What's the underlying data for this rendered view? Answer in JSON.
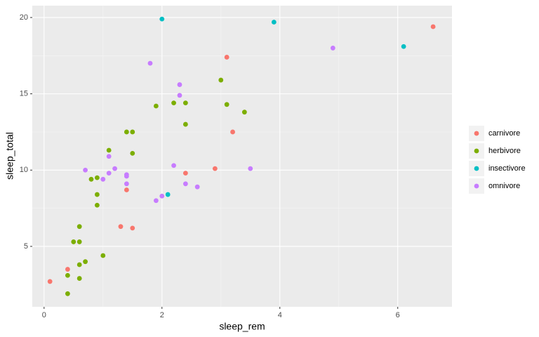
{
  "chart_data": {
    "type": "scatter",
    "x_label": "sleep_rem",
    "y_label": "sleep_total",
    "xlim": [
      -0.2,
      6.92
    ],
    "ylim": [
      1.04,
      20.78
    ],
    "xticks": [
      0,
      2,
      4,
      6
    ],
    "yticks": [
      5,
      10,
      15,
      20
    ],
    "grid": true,
    "legend": "right",
    "series": [
      {
        "name": "carnivore",
        "color": "#F8766D",
        "x": [
          0.1,
          0.4,
          1.3,
          1.5,
          1.4,
          2.4,
          2.9,
          3.1,
          3.2,
          6.6
        ],
        "values": [
          2.7,
          3.5,
          6.3,
          6.2,
          8.7,
          9.8,
          10.1,
          17.4,
          12.5,
          19.4
        ]
      },
      {
        "name": "herbivore",
        "color": "#7CAE00",
        "x": [
          0.4,
          0.4,
          0.6,
          0.6,
          0.7,
          1.0,
          0.5,
          0.6,
          0.6,
          0.9,
          0.9,
          0.8,
          0.9,
          1.1,
          1.5,
          1.4,
          1.5,
          1.9,
          2.2,
          2.4,
          2.4,
          3.0,
          3.1,
          3.4
        ],
        "values": [
          1.9,
          3.1,
          2.9,
          3.8,
          4.0,
          4.4,
          5.3,
          5.3,
          6.3,
          7.7,
          8.4,
          9.4,
          9.5,
          11.3,
          11.1,
          12.5,
          12.5,
          14.2,
          14.4,
          14.4,
          13.0,
          15.9,
          14.3,
          13.8
        ]
      },
      {
        "name": "insectivore",
        "color": "#00BFC4",
        "x": [
          2.0,
          2.1,
          3.9,
          6.1
        ],
        "values": [
          19.9,
          8.4,
          19.7,
          18.1
        ]
      },
      {
        "name": "omnivore",
        "color": "#C77CFF",
        "x": [
          0.7,
          1.0,
          1.1,
          1.1,
          1.2,
          1.4,
          1.4,
          1.4,
          1.8,
          1.9,
          2.0,
          2.2,
          2.3,
          2.3,
          2.4,
          2.6,
          3.5,
          4.9
        ],
        "values": [
          10.0,
          9.4,
          9.8,
          10.9,
          10.1,
          9.7,
          9.6,
          9.1,
          17.0,
          8.0,
          8.3,
          10.3,
          15.6,
          14.9,
          9.1,
          8.9,
          10.1,
          18.0
        ]
      }
    ]
  }
}
